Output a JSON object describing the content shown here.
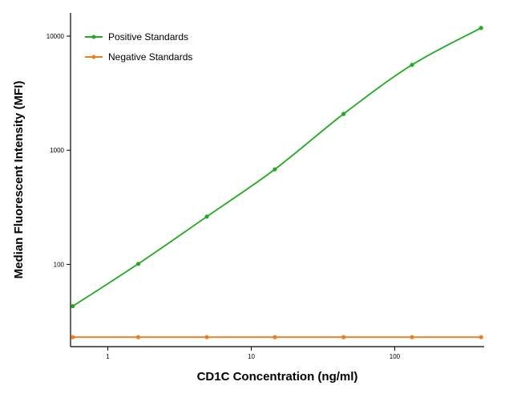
{
  "chart_data": {
    "type": "line",
    "title": "",
    "xlabel": "CD1C Concentration (ng/ml)",
    "ylabel": "Median  Fluorescent Intensity  (MFI)",
    "x_scale": "log",
    "y_scale": "log",
    "xlim": [
      0.55,
      420
    ],
    "ylim": [
      19,
      16000
    ],
    "x_ticks": [
      1,
      10,
      100
    ],
    "x_tick_labels": [
      "1",
      "10",
      "100"
    ],
    "y_ticks": [
      100,
      1000,
      10000
    ],
    "y_tick_labels": [
      "100",
      "1000",
      "10000"
    ],
    "grid": false,
    "legend_position": "top-left",
    "series": [
      {
        "name": "Positive Standards",
        "color": "#22aa22",
        "marker": "circle",
        "x": [
          0.57,
          1.63,
          4.9,
          14.6,
          44,
          132,
          400
        ],
        "y": [
          43,
          101,
          262,
          680,
          2080,
          5600,
          11800
        ]
      },
      {
        "name": "Negative Standards",
        "color": "#ee7c1e",
        "marker": "circle",
        "x": [
          0.57,
          1.63,
          4.9,
          14.6,
          44,
          132,
          400
        ],
        "y": [
          23,
          23,
          23,
          23,
          23,
          23,
          23
        ]
      }
    ]
  }
}
